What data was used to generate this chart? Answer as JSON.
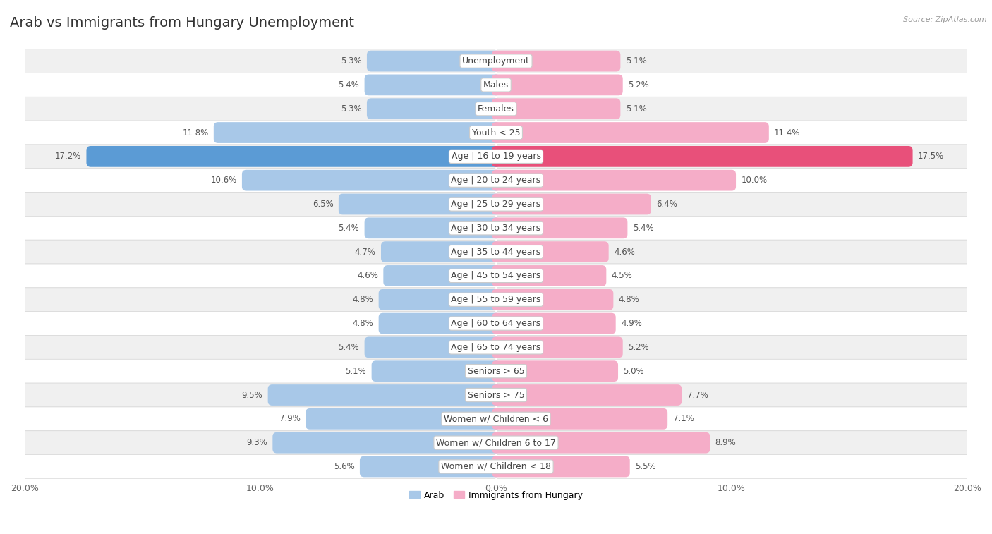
{
  "title": "Arab vs Immigrants from Hungary Unemployment",
  "source": "Source: ZipAtlas.com",
  "categories": [
    "Unemployment",
    "Males",
    "Females",
    "Youth < 25",
    "Age | 16 to 19 years",
    "Age | 20 to 24 years",
    "Age | 25 to 29 years",
    "Age | 30 to 34 years",
    "Age | 35 to 44 years",
    "Age | 45 to 54 years",
    "Age | 55 to 59 years",
    "Age | 60 to 64 years",
    "Age | 65 to 74 years",
    "Seniors > 65",
    "Seniors > 75",
    "Women w/ Children < 6",
    "Women w/ Children 6 to 17",
    "Women w/ Children < 18"
  ],
  "arab_values": [
    5.3,
    5.4,
    5.3,
    11.8,
    17.2,
    10.6,
    6.5,
    5.4,
    4.7,
    4.6,
    4.8,
    4.8,
    5.4,
    5.1,
    9.5,
    7.9,
    9.3,
    5.6
  ],
  "hungary_values": [
    5.1,
    5.2,
    5.1,
    11.4,
    17.5,
    10.0,
    6.4,
    5.4,
    4.6,
    4.5,
    4.8,
    4.9,
    5.2,
    5.0,
    7.7,
    7.1,
    8.9,
    5.5
  ],
  "arab_color": "#a8c8e8",
  "hungary_color": "#f5adc8",
  "arab_color_highlight": "#5b9bd5",
  "hungary_color_highlight": "#e8507a",
  "axis_limit": 20.0,
  "bar_height": 0.52,
  "bg_color": "#ffffff",
  "row_bg_light": "#f0f0f0",
  "row_bg_white": "#ffffff",
  "row_border_color": "#d8d8d8",
  "label_color": "#444444",
  "value_color": "#555555",
  "legend_arab": "Arab",
  "legend_hungary": "Immigrants from Hungary",
  "title_fontsize": 14,
  "label_fontsize": 9,
  "value_fontsize": 8.5,
  "axis_fontsize": 9
}
